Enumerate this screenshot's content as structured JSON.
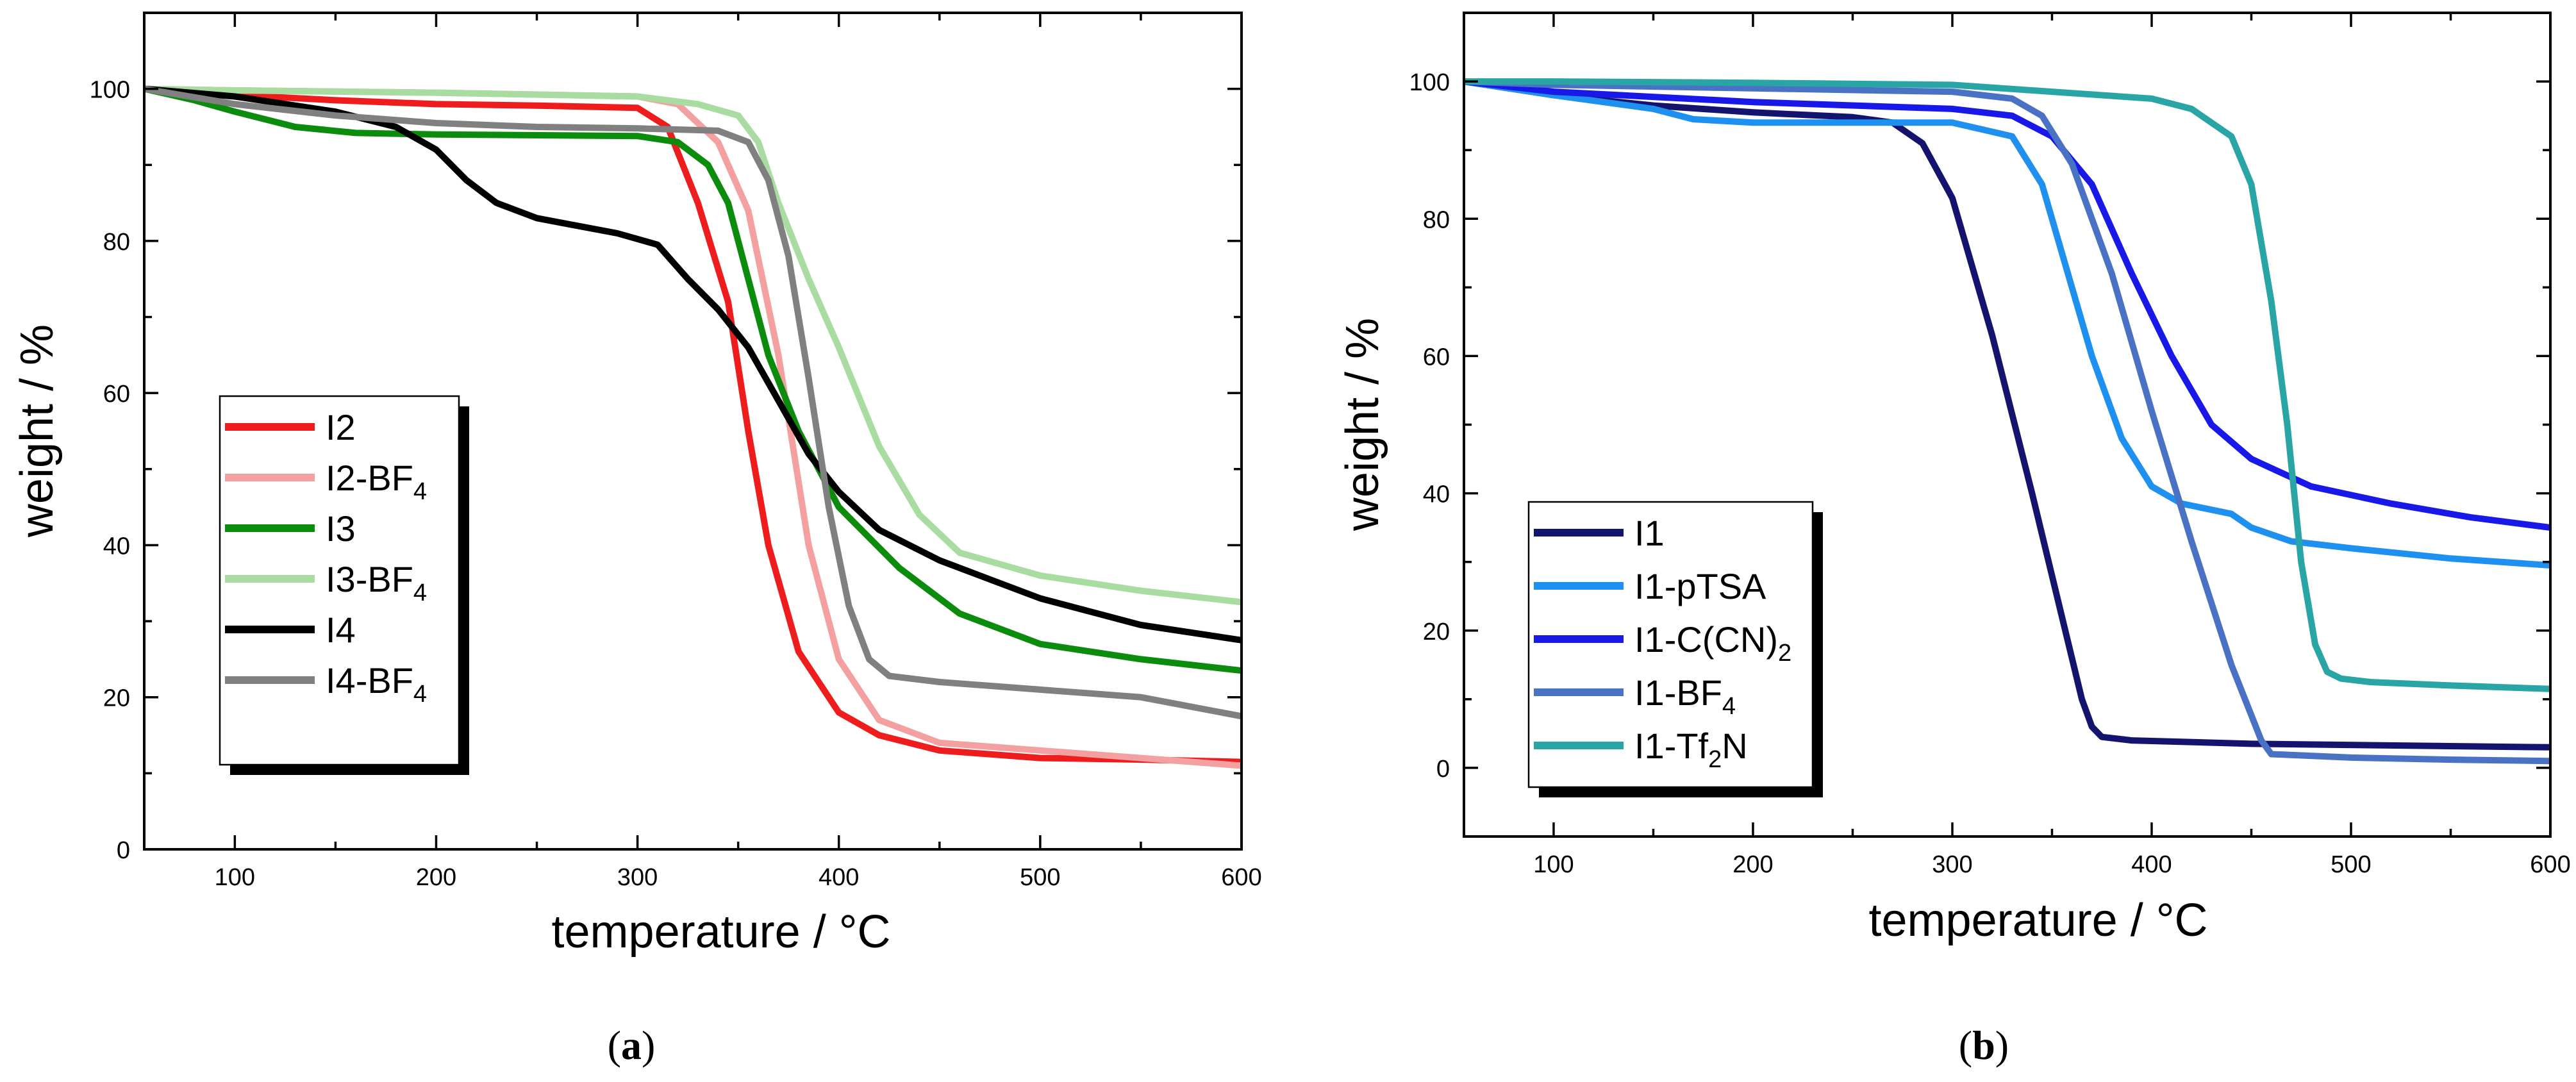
{
  "chart_data": [
    {
      "type": "line",
      "panel_label": "a",
      "xlabel": "temperature / °C",
      "ylabel": "weight / %",
      "xlim": [
        55,
        600
      ],
      "ylim": [
        0,
        110
      ],
      "xticks": [
        100,
        200,
        300,
        400,
        500,
        600
      ],
      "yticks": [
        0,
        20,
        40,
        60,
        80,
        100
      ],
      "legend_position": "center-left",
      "series": [
        {
          "name": "I2",
          "base": "I2",
          "sub": "",
          "color": "#ee1c1c",
          "x": [
            55,
            100,
            150,
            200,
            250,
            300,
            315,
            330,
            345,
            355,
            365,
            380,
            400,
            420,
            450,
            500,
            550,
            600
          ],
          "y": [
            100,
            99.2,
            98.5,
            98,
            97.8,
            97.5,
            95,
            85,
            72,
            55,
            40,
            26,
            18,
            15,
            13,
            12,
            11.8,
            11.5
          ]
        },
        {
          "name": "I2-BF4",
          "base": "I2-BF",
          "sub": "4",
          "color": "#f4a0a0",
          "x": [
            55,
            100,
            200,
            300,
            320,
            340,
            355,
            370,
            385,
            400,
            420,
            450,
            500,
            550,
            600
          ],
          "y": [
            100,
            99.8,
            99.5,
            99,
            98,
            93,
            84,
            65,
            40,
            25,
            17,
            14,
            13,
            12,
            11
          ]
        },
        {
          "name": "I3",
          "base": "I3",
          "sub": "",
          "color": "#0c8c0c",
          "x": [
            55,
            80,
            100,
            130,
            160,
            200,
            300,
            320,
            335,
            345,
            355,
            365,
            380,
            400,
            430,
            460,
            500,
            550,
            600
          ],
          "y": [
            100,
            98.5,
            97,
            95,
            94.2,
            94,
            93.8,
            93,
            90,
            85,
            75,
            65,
            55,
            45,
            37,
            31,
            27,
            25,
            23.5
          ]
        },
        {
          "name": "I3-BF4",
          "base": "I3-BF",
          "sub": "4",
          "color": "#a8dca0",
          "x": [
            55,
            100,
            200,
            300,
            330,
            350,
            360,
            370,
            385,
            400,
            420,
            440,
            460,
            500,
            550,
            600
          ],
          "y": [
            100,
            99.8,
            99.5,
            99,
            98,
            96.5,
            93,
            85,
            75,
            66,
            53,
            44,
            39,
            36,
            34,
            32.5
          ]
        },
        {
          "name": "I4",
          "base": "I4",
          "sub": "",
          "color": "#000000",
          "x": [
            55,
            100,
            150,
            180,
            200,
            215,
            230,
            250,
            270,
            290,
            310,
            325,
            340,
            355,
            370,
            385,
            400,
            420,
            450,
            500,
            550,
            600
          ],
          "y": [
            100,
            99,
            97,
            95,
            92,
            88,
            85,
            83,
            82,
            81,
            79.5,
            75,
            71,
            66,
            59,
            52,
            47,
            42,
            38,
            33,
            29.5,
            27.5
          ]
        },
        {
          "name": "I4-BF4",
          "base": "I4-BF",
          "sub": "4",
          "color": "#808080",
          "x": [
            55,
            100,
            150,
            200,
            250,
            300,
            340,
            355,
            365,
            375,
            385,
            395,
            405,
            415,
            425,
            450,
            500,
            550,
            600
          ],
          "y": [
            100,
            98,
            96.5,
            95.5,
            95,
            94.8,
            94.5,
            93,
            88,
            78,
            62,
            45,
            32,
            25,
            22.8,
            22,
            21,
            20,
            17.5
          ]
        }
      ]
    },
    {
      "type": "line",
      "panel_label": "b",
      "xlabel": "temperature / °C",
      "ylabel": "weight / %",
      "xlim": [
        55,
        600
      ],
      "ylim": [
        -10,
        110
      ],
      "xticks": [
        100,
        200,
        300,
        400,
        500,
        600
      ],
      "yticks": [
        0,
        20,
        40,
        60,
        80,
        100
      ],
      "legend_position": "bottom-left",
      "series": [
        {
          "name": "I1",
          "base": "I1",
          "sub": "",
          "color": "#14146e",
          "x": [
            55,
            100,
            150,
            200,
            250,
            270,
            285,
            300,
            320,
            340,
            355,
            365,
            370,
            375,
            390,
            450,
            600
          ],
          "y": [
            100,
            98,
            96.5,
            95.5,
            94.8,
            94,
            91,
            83,
            63,
            40,
            22,
            10,
            6,
            4.5,
            4,
            3.5,
            3
          ]
        },
        {
          "name": "I1-pTSA",
          "base": "I1-pTSA",
          "sub": "",
          "color": "#1e90f0",
          "x": [
            55,
            100,
            150,
            170,
            200,
            250,
            300,
            330,
            345,
            355,
            370,
            385,
            400,
            415,
            440,
            450,
            470,
            500,
            550,
            600
          ],
          "y": [
            100,
            98,
            96,
            94.5,
            94,
            94,
            94,
            92,
            85,
            75,
            60,
            48,
            41,
            38.5,
            37,
            35,
            33,
            32,
            30.5,
            29.5
          ]
        },
        {
          "name": "I1-C(CN)2",
          "base": "I1-C(CN)",
          "sub": "2",
          "color": "#1818e8",
          "x": [
            55,
            100,
            200,
            300,
            330,
            350,
            370,
            390,
            410,
            430,
            450,
            480,
            520,
            560,
            600
          ],
          "y": [
            100,
            98.5,
            97,
            96,
            95,
            92,
            85,
            72,
            60,
            50,
            45,
            41,
            38.5,
            36.5,
            35
          ]
        },
        {
          "name": "I1-BF4",
          "base": "I1-BF",
          "sub": "4",
          "color": "#4a72c4",
          "x": [
            55,
            100,
            200,
            300,
            330,
            345,
            360,
            380,
            400,
            420,
            440,
            455,
            460,
            500,
            550,
            600
          ],
          "y": [
            100,
            99.5,
            99,
            98.5,
            97.5,
            95,
            88,
            72,
            52,
            33,
            15,
            4,
            2,
            1.5,
            1.2,
            1
          ]
        },
        {
          "name": "I1-Tf2N",
          "base": "I1-Tf",
          "sub": "2",
          "tail": "N",
          "color": "#2aa5a5",
          "x": [
            55,
            100,
            200,
            300,
            350,
            400,
            420,
            440,
            450,
            460,
            468,
            475,
            482,
            488,
            495,
            510,
            550,
            600
          ],
          "y": [
            100,
            100,
            99.8,
            99.5,
            98.5,
            97.5,
            96,
            92,
            85,
            68,
            50,
            30,
            18,
            14,
            13,
            12.5,
            12,
            11.5
          ]
        }
      ]
    }
  ],
  "captions": {
    "a": {
      "open": "(",
      "letter": "a",
      "close": ")"
    },
    "b": {
      "open": "(",
      "letter": "b",
      "close": ")"
    }
  }
}
